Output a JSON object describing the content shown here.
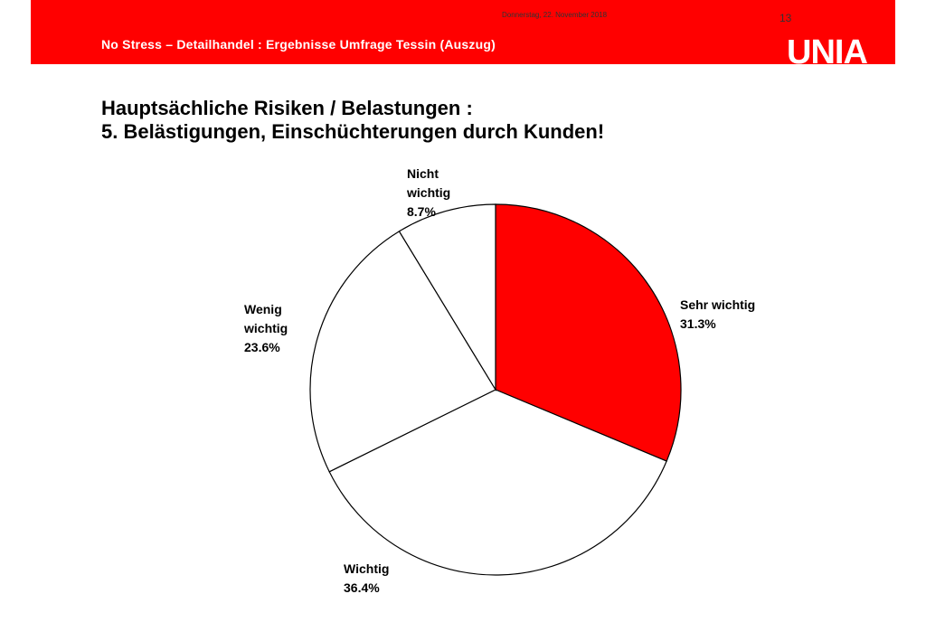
{
  "header": {
    "date": "Donnerstag, 22. November 2018",
    "page_number": "13",
    "subtitle": "No Stress – Detailhandel : Ergebnisse Umfrage Tessin (Auszug)",
    "logo_text": "UNIA",
    "brand_color": "#ff0000"
  },
  "title": {
    "line1": "Hauptsächliche Risiken / Belastungen :",
    "line2": "5. Belästigungen, Einschüchterungen durch Kunden!"
  },
  "chart_data": {
    "type": "pie",
    "categories": [
      "Sehr wichtig",
      "Wichtig",
      "Wenig wichtig",
      "Nicht wichtig"
    ],
    "values": [
      31.3,
      36.4,
      23.6,
      8.7
    ],
    "value_labels": [
      "31.3%",
      "36.4%",
      "23.6%",
      "8.7%"
    ],
    "label_lines": [
      [
        "Sehr wichtig"
      ],
      [
        "Wichtig"
      ],
      [
        "Wenig",
        "wichtig"
      ],
      [
        "Nicht",
        "wichtig"
      ]
    ],
    "colors": [
      "#ff0000",
      "#ffffff",
      "#ffffff",
      "#ffffff"
    ],
    "start_angle": "12 o'clock",
    "direction": "clockwise"
  }
}
